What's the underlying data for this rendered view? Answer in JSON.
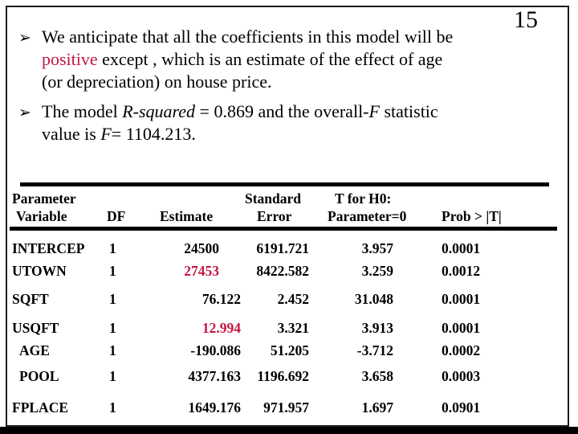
{
  "page_number": "15",
  "bullet_glyph": "➢",
  "colors": {
    "accent": "#c41644",
    "text": "#000000",
    "rule": "#000000"
  },
  "bullets": {
    "b1": {
      "line1": "We anticipate that all the coefficients in this model will be",
      "highlight": "positive",
      "line2_rest": " except , which is an estimate of the effect of age",
      "line3": "(or depreciation) on house price."
    },
    "b2": {
      "pre": "The model  ",
      "rsq": "R-squared",
      "mid": " = 0.869 and the overall-",
      "f1": "F",
      "post": " statistic",
      "line2_pre": "value is ",
      "f2": "F",
      "line2_post": "= 1104.213."
    }
  },
  "table": {
    "headers": {
      "parameter": "Parameter",
      "variable": "Variable",
      "df": "DF",
      "estimate": "Estimate",
      "standard": "Standard",
      "error": "Error",
      "t_for_h0": "T for H0:",
      "parameter_eq_0": "Parameter=0",
      "prob": "Prob > |T|"
    },
    "rows": [
      {
        "variable": "INTERCEP",
        "df": "1",
        "estimate": "24500",
        "std_error": "6191.721",
        "t_value": "3.957",
        "prob": "0.0001"
      },
      {
        "variable": "UTOWN",
        "df": "1",
        "estimate": "27453",
        "std_error": "8422.582",
        "t_value": "3.259",
        "prob": "0.0012"
      },
      {
        "variable": "SQFT",
        "df": "1",
        "estimate": "76.122",
        "std_error": "2.452",
        "t_value": "31.048",
        "prob": "0.0001"
      },
      {
        "variable": "USQFT",
        "df": "1",
        "estimate": "12.994",
        "std_error": "3.321",
        "t_value": "3.913",
        "prob": "0.0001"
      },
      {
        "variable": "AGE",
        "df": "1",
        "estimate": "-190.086",
        "std_error": "51.205",
        "t_value": "-3.712",
        "prob": "0.0002"
      },
      {
        "variable": "POOL",
        "df": "1",
        "estimate": "4377.163",
        "std_error": "1196.692",
        "t_value": "3.658",
        "prob": "0.0003"
      },
      {
        "variable": "FPLACE",
        "df": "1",
        "estimate": "1649.176",
        "std_error": "971.957",
        "t_value": "1.697",
        "prob": "0.0901"
      }
    ]
  }
}
